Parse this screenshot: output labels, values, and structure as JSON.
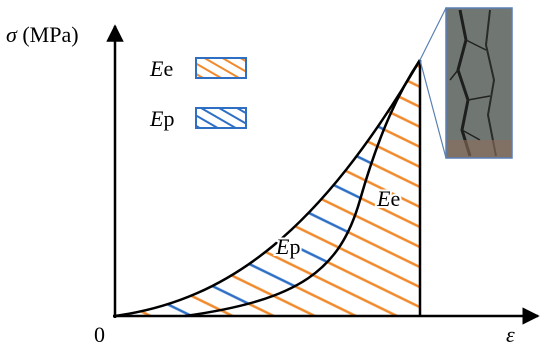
{
  "axes": {
    "y_label": {
      "symbol": "σ",
      "unit": "(MPa)"
    },
    "x_label": "ε",
    "origin": "0"
  },
  "legend": [
    {
      "symbol": "E",
      "subscript": "e"
    },
    {
      "symbol": "E",
      "subscript": "p"
    }
  ],
  "regions": [
    {
      "symbol": "E",
      "subscript": "p"
    },
    {
      "symbol": "E",
      "subscript": "e"
    }
  ]
}
